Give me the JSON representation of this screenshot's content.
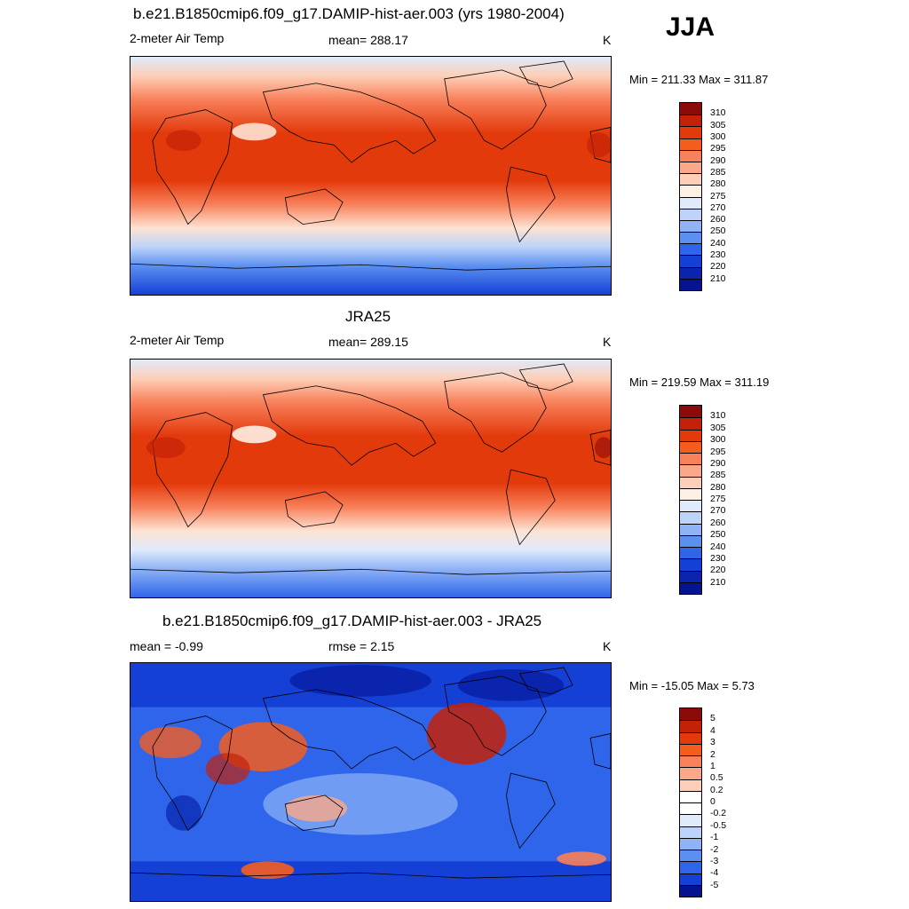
{
  "season": "JJA",
  "panels": [
    {
      "id": "model",
      "title": "b.e21.B1850cmip6.f09_g17.DAMIP-hist-aer.003 (yrs 1980-2004)",
      "left_label": "2-meter Air Temp",
      "center_label": "mean= 288.17",
      "units": "K",
      "minmax": "Min = 211.33 Max = 311.87",
      "colorbar": {
        "labels": [
          "310",
          "305",
          "300",
          "295",
          "290",
          "285",
          "280",
          "275",
          "270",
          "260",
          "250",
          "240",
          "230",
          "220",
          "210"
        ],
        "colors": [
          "#8b0a0a",
          "#c32208",
          "#e33a0c",
          "#f55d1f",
          "#f8805a",
          "#fba88a",
          "#fdcfb8",
          "#fff0e4",
          "#dfeafb",
          "#bdd3f9",
          "#8fb3f6",
          "#5b8ff0",
          "#2e65ea",
          "#1540d6",
          "#0a24ad",
          "#061391"
        ]
      }
    },
    {
      "id": "obs",
      "title": "JRA25",
      "left_label": "2-meter Air Temp",
      "center_label": "mean= 289.15",
      "units": "K",
      "minmax": "Min = 219.59 Max = 311.19",
      "colorbar": {
        "labels": [
          "310",
          "305",
          "300",
          "295",
          "290",
          "285",
          "280",
          "275",
          "270",
          "260",
          "250",
          "240",
          "230",
          "220",
          "210"
        ],
        "colors": [
          "#8b0a0a",
          "#c32208",
          "#e33a0c",
          "#f55d1f",
          "#f8805a",
          "#fba88a",
          "#fdcfb8",
          "#fff0e4",
          "#dfeafb",
          "#bdd3f9",
          "#8fb3f6",
          "#5b8ff0",
          "#2e65ea",
          "#1540d6",
          "#0a24ad",
          "#061391"
        ]
      }
    },
    {
      "id": "diff",
      "title": "b.e21.B1850cmip6.f09_g17.DAMIP-hist-aer.003 - JRA25",
      "left_label": "mean =  -0.99",
      "center_label": "rmse =   2.15",
      "units": "K",
      "minmax": "Min = -15.05 Max =   5.73",
      "colorbar": {
        "labels": [
          "5",
          "4",
          "3",
          "2",
          "1",
          "0.5",
          "0.2",
          "0",
          "-0.2",
          "-0.5",
          "-1",
          "-2",
          "-3",
          "-4",
          "-5"
        ],
        "colors": [
          "#8b0a0a",
          "#c32208",
          "#e33a0c",
          "#f55d1f",
          "#f8805a",
          "#fba88a",
          "#fdcfb8",
          "#ffffff",
          "#ffffff",
          "#dfeafb",
          "#bdd3f9",
          "#8fb3f6",
          "#5b8ff0",
          "#2e65ea",
          "#1540d6",
          "#061391"
        ]
      }
    }
  ],
  "colors": {
    "model_map": {
      "pole_south": "#1b3fd0",
      "south_mid": "#7fa6f4",
      "south_low": "#fde3d3",
      "subtropics": "#f8805a",
      "tropics": "#e33a0c",
      "north_mid": "#f8805a",
      "north_high": "#fdcfb8",
      "arctic": "#dfeafb"
    },
    "obs_map": {
      "pole_south": "#2e65ea",
      "south_mid": "#8fb3f6",
      "south_low": "#fde3d3",
      "subtropics": "#f8805a",
      "tropics": "#e33a0c",
      "north_mid": "#f8805a",
      "north_high": "#fdcfb8",
      "arctic": "#dfeafb"
    },
    "diff_map": {
      "base": "#2e65ea",
      "light": "#8fb3f6",
      "dark": "#0a24ad",
      "warm": "#f55d1f",
      "hot": "#c32208"
    }
  }
}
